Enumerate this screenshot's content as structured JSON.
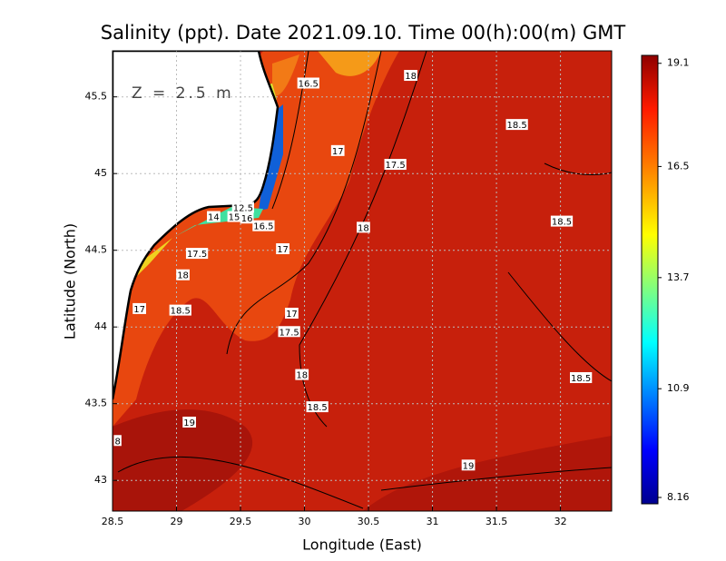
{
  "chart_data": {
    "type": "map",
    "title": "Salinity (ppt). Date 2021.09.10. Time 00(h):00(m) GMT",
    "annotation": "Z = 2.5 m",
    "x_label": "Longitude (East)",
    "y_label": "Latitude (North)",
    "xlim": [
      28.5,
      32.4
    ],
    "ylim": [
      42.8,
      45.8
    ],
    "xticks": [
      28.5,
      29,
      29.5,
      30,
      30.5,
      31,
      31.5,
      32
    ],
    "yticks": [
      43,
      43.5,
      44,
      44.5,
      45,
      45.5
    ],
    "grid": true,
    "colorbar": {
      "lim": [
        8.0,
        19.3
      ],
      "ticks": [
        19.1,
        16.5,
        13.7,
        10.9,
        8.16
      ]
    },
    "contour_labels": [
      {
        "value": 16.5,
        "lon": 30.03,
        "lat": 45.59
      },
      {
        "value": 18,
        "lon": 30.83,
        "lat": 45.64
      },
      {
        "value": 18.5,
        "lon": 31.66,
        "lat": 45.32
      },
      {
        "value": 17,
        "lon": 30.26,
        "lat": 45.15
      },
      {
        "value": 17.5,
        "lon": 30.71,
        "lat": 45.06
      },
      {
        "value": 18.5,
        "lon": 32.01,
        "lat": 44.69
      },
      {
        "value": 18,
        "lon": 30.46,
        "lat": 44.65
      },
      {
        "value": 12.5,
        "lon": 29.52,
        "lat": 44.78
      },
      {
        "value": 14,
        "lon": 29.29,
        "lat": 44.72
      },
      {
        "value": 15,
        "lon": 29.45,
        "lat": 44.72
      },
      {
        "value": 16,
        "lon": 29.55,
        "lat": 44.71
      },
      {
        "value": 16.5,
        "lon": 29.68,
        "lat": 44.66
      },
      {
        "value": 17,
        "lon": 29.83,
        "lat": 44.51
      },
      {
        "value": 17.5,
        "lon": 29.16,
        "lat": 44.48
      },
      {
        "value": 18,
        "lon": 29.05,
        "lat": 44.34
      },
      {
        "value": 17,
        "lon": 28.71,
        "lat": 44.12
      },
      {
        "value": 18.5,
        "lon": 29.03,
        "lat": 44.11
      },
      {
        "value": 17,
        "lon": 29.9,
        "lat": 44.09
      },
      {
        "value": 17.5,
        "lon": 29.88,
        "lat": 43.97
      },
      {
        "value": 18,
        "lon": 29.98,
        "lat": 43.69
      },
      {
        "value": 18.5,
        "lon": 30.1,
        "lat": 43.48
      },
      {
        "value": 18.5,
        "lon": 32.16,
        "lat": 43.67
      },
      {
        "value": 19,
        "lon": 29.1,
        "lat": 43.38
      },
      {
        "value": 8,
        "lon": 28.54,
        "lat": 43.26
      },
      {
        "value": 19,
        "lon": 31.28,
        "lat": 43.1
      }
    ]
  }
}
